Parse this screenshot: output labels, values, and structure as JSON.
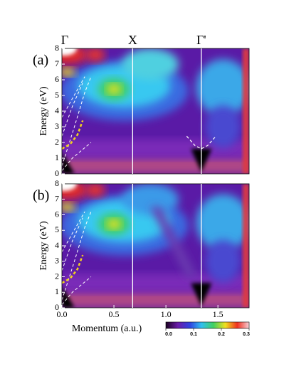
{
  "chart_data": [
    {
      "type": "heatmap",
      "panel_label": "(a)",
      "ylabel": "Energy (eV)",
      "xlim": [
        0,
        1.8
      ],
      "ylim": [
        0,
        8
      ],
      "yticks": [
        0,
        1,
        2,
        3,
        4,
        5,
        6,
        7,
        8
      ],
      "symmetry_points": [
        {
          "label": "Γ",
          "x": 0
        },
        {
          "label": "X",
          "x": 0.68
        },
        {
          "label": "Γ'",
          "x": 1.34
        }
      ]
    },
    {
      "type": "heatmap",
      "panel_label": "(b)",
      "ylabel": "Energy (eV)",
      "xlabel": "Momentum (a.u.)",
      "xlim": [
        0,
        1.8
      ],
      "ylim": [
        0,
        8
      ],
      "yticks": [
        0,
        1,
        2,
        3,
        4,
        5,
        6,
        7,
        8
      ],
      "xticks": [
        {
          "value": 0,
          "label": "0.0"
        },
        0.5,
        {
          "value": 1,
          "label": "1.0"
        },
        1.5
      ],
      "vlines": [
        0.68,
        1.34
      ]
    },
    {
      "type": "colorbar",
      "xlim": [
        0,
        0.3
      ],
      "xticks": [
        {
          "value": 0,
          "label": "0.0"
        },
        0.1,
        0.2,
        0.3
      ],
      "colors": [
        "#1a0020",
        "#6a1aa8",
        "#3040e0",
        "#30c0f0",
        "#40d060",
        "#f0e020",
        "#f03020",
        "#f8d0d8"
      ]
    }
  ]
}
